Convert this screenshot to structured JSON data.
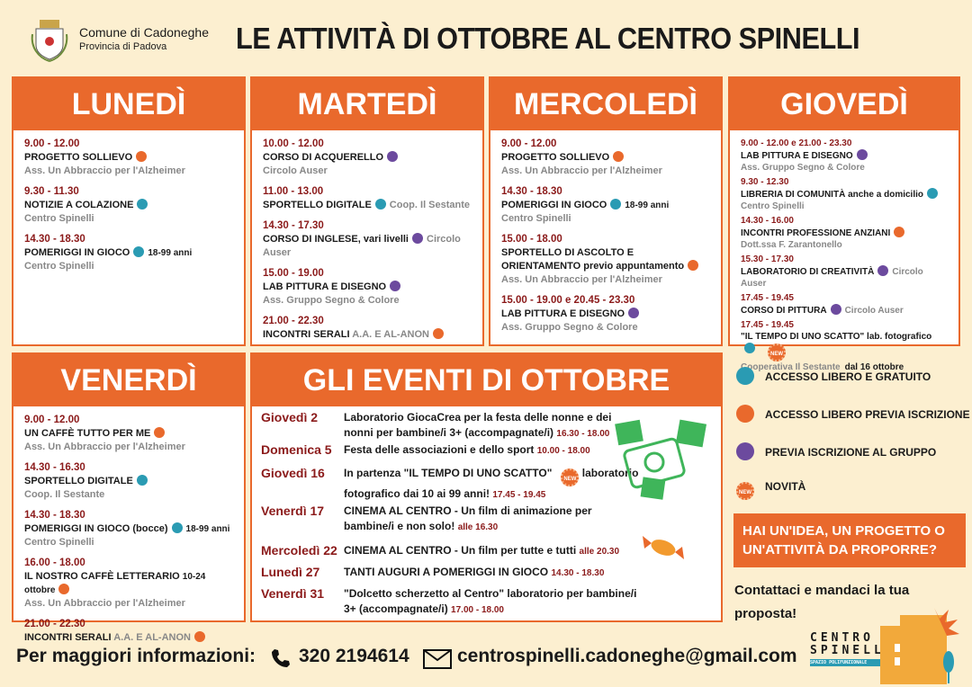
{
  "header": {
    "comune": "Comune di Cadoneghe",
    "provincia": "Provincia di Padova",
    "title": "LE ATTIVITÀ DI OTTOBRE AL CENTRO SPINELLI"
  },
  "colors": {
    "orange": "#e9692c",
    "teal": "#2a9bb3",
    "purple": "#6c4a9e",
    "time": "#8b1a1a"
  },
  "days": [
    {
      "name": "LUNEDÌ",
      "items": [
        {
          "time": "9.00 - 12.00",
          "line": [
            {
              "t": "PROGETTO SOLLIEVO",
              "c": "ln"
            },
            {
              "dot": "orange"
            }
          ],
          "org": "Ass. Un Abbraccio per l'Alzheimer"
        },
        {
          "time": "9.30 - 11.30",
          "line": [
            {
              "t": "NOTIZIE A COLAZIONE",
              "c": "ln"
            },
            {
              "dot": "teal"
            }
          ],
          "org": "Centro Spinelli"
        },
        {
          "time": "14.30 - 18.30",
          "line": [
            {
              "t": "POMERIGGI IN GIOCO",
              "c": "ln"
            },
            {
              "dot": "teal"
            },
            {
              "t": "18-99 anni",
              "c": "s"
            }
          ],
          "org": "Centro Spinelli"
        }
      ]
    },
    {
      "name": "MARTEDÌ",
      "items": [
        {
          "time": "10.00 - 12.00",
          "line": [
            {
              "t": "CORSO DI ACQUERELLO",
              "c": "ln"
            },
            {
              "dot": "purple"
            }
          ],
          "org": "Circolo Auser"
        },
        {
          "time": "11.00 - 13.00",
          "line": [
            {
              "t": "SPORTELLO DIGITALE",
              "c": "ln"
            },
            {
              "dot": "teal"
            },
            {
              "t": "Coop. Il Sestante",
              "c": "g"
            }
          ]
        },
        {
          "time": "14.30 - 17.30",
          "line": [
            {
              "t": "CORSO DI INGLESE, vari livelli",
              "c": "ln"
            },
            {
              "dot": "purple"
            },
            {
              "t": "Circolo Auser",
              "c": "g"
            }
          ]
        },
        {
          "time": "15.00 - 19.00",
          "line": [
            {
              "t": "LAB PITTURA E DISEGNO",
              "c": "ln"
            },
            {
              "dot": "purple"
            }
          ],
          "org": "Ass. Gruppo Segno & Colore"
        },
        {
          "time": "21.00 - 22.30",
          "line": [
            {
              "t": "INCONTRI SERALI ",
              "c": "ln"
            },
            {
              "t": "A.A. E AL-ANON",
              "c": "g"
            },
            {
              "dot": "orange"
            }
          ]
        }
      ]
    },
    {
      "name": "MERCOLEDÌ",
      "items": [
        {
          "time": "9.00 - 12.00",
          "line": [
            {
              "t": "PROGETTO SOLLIEVO",
              "c": "ln"
            },
            {
              "dot": "orange"
            }
          ],
          "org": "Ass. Un Abbraccio per l'Alzheimer"
        },
        {
          "time": "14.30 - 18.30",
          "line": [
            {
              "t": "POMERIGGI IN GIOCO",
              "c": "ln"
            },
            {
              "dot": "teal"
            },
            {
              "t": "18-99 anni",
              "c": "s"
            }
          ],
          "org": "Centro Spinelli"
        },
        {
          "time": "15.00 - 18.00",
          "line": [
            {
              "t": "SPORTELLO DI ASCOLTO E ORIENTAMENTO previo appuntamento",
              "c": "ln"
            },
            {
              "dot": "orange"
            }
          ],
          "org": "Ass. Un Abbraccio per l'Alzheimer"
        },
        {
          "time": "15.00 - 19.00 e  20.45 - 23.30",
          "line": [
            {
              "t": "LAB PITTURA E DISEGNO",
              "c": "ln"
            },
            {
              "dot": "purple"
            }
          ],
          "org": "Ass. Gruppo Segno & Colore"
        }
      ]
    },
    {
      "name": "GIOVEDÌ",
      "compact": true,
      "items": [
        {
          "time": "9.00 - 12.00  e  21.00 - 23.30",
          "line": [
            {
              "t": "LAB PITTURA E DISEGNO",
              "c": "ln"
            },
            {
              "dot": "purple"
            }
          ],
          "org": "Ass. Gruppo Segno & Colore"
        },
        {
          "time": "9.30 - 12.30",
          "line": [
            {
              "t": "LIBRERIA DI COMUNITÀ ",
              "c": "ln"
            },
            {
              "t": "anche a domicilio",
              "c": "s"
            },
            {
              "dot": "teal"
            }
          ],
          "org": "Centro Spinelli"
        },
        {
          "time": "14.30 - 16.00",
          "line": [
            {
              "t": "INCONTRI PROFESSIONE ANZIANI",
              "c": "ln"
            },
            {
              "dot": "orange"
            }
          ],
          "org": "Dott.ssa F. Zarantonello"
        },
        {
          "time": "15.30 - 17.30",
          "line": [
            {
              "t": "LABORATORIO DI CREATIVITÀ",
              "c": "ln"
            },
            {
              "dot": "purple"
            },
            {
              "t": "Circolo Auser",
              "c": "g"
            }
          ]
        },
        {
          "time": "17.45 - 19.45",
          "line": [
            {
              "t": "CORSO DI PITTURA",
              "c": "ln"
            },
            {
              "dot": "purple"
            },
            {
              "t": "Circolo Auser",
              "c": "g"
            }
          ]
        },
        {
          "time": "17.45 - 19.45",
          "line": [
            {
              "t": "\"IL TEMPO DI UNO SCATTO\" ",
              "c": "ln"
            },
            {
              "t": "lab. fotografico",
              "c": "s"
            },
            {
              "dot": "teal"
            },
            {
              "new": "NEW"
            }
          ],
          "org": "Cooperativa Il Sestante",
          "org_extra": "dal 16 ottobre"
        }
      ]
    },
    {
      "name": "VENERDÌ",
      "items": [
        {
          "time": "9.00 - 12.00",
          "line": [
            {
              "t": "UN CAFFÈ  TUTTO PER ME",
              "c": "ln"
            },
            {
              "dot": "orange"
            }
          ],
          "org": "Ass. Un Abbraccio per l'Alzheimer"
        },
        {
          "time": "14.30 - 16.30",
          "line": [
            {
              "t": "SPORTELLO DIGITALE",
              "c": "ln"
            },
            {
              "dot": "teal"
            }
          ],
          "org": "Coop. Il Sestante"
        },
        {
          "time": "14.30 - 18.30",
          "line": [
            {
              "t": "POMERIGGI IN GIOCO (bocce)",
              "c": "ln"
            },
            {
              "dot": "teal"
            },
            {
              "t": "18-99 anni",
              "c": "s"
            }
          ],
          "org": "Centro Spinelli"
        },
        {
          "time": "16.00 - 18.00",
          "line": [
            {
              "t": "IL NOSTRO CAFFÈ LETTERARIO ",
              "c": "ln"
            },
            {
              "t": "10-24 ottobre",
              "c": "s"
            },
            {
              "dot": "orange"
            }
          ],
          "org": "Ass. Un Abbraccio per l'Alzheimer"
        },
        {
          "time": "21.00 - 22.30",
          "line": [
            {
              "t": "INCONTRI SERALI ",
              "c": "ln"
            },
            {
              "t": "A.A. E AL-ANON",
              "c": "g"
            },
            {
              "dot": "orange"
            }
          ]
        }
      ]
    }
  ],
  "events": {
    "title": "GLI EVENTI DI OTTOBRE",
    "items": [
      {
        "day": "Giovedì 2",
        "line": [
          {
            "t": "Laboratorio GiocaCrea per la festa delle nonne e dei nonni per bambine/i 3+ (accompagnate/i) "
          },
          {
            "t": "16.30 - 18.00",
            "c": "t"
          }
        ]
      },
      {
        "day": "Domenica 5",
        "line": [
          {
            "t": "Festa delle associazioni e dello sport "
          },
          {
            "t": "10.00 - 18.00",
            "c": "t"
          }
        ]
      },
      {
        "day": "Giovedì 16",
        "line": [
          {
            "t": "In partenza \"IL TEMPO DI UNO SCATTO\""
          },
          {
            "new": "NEW"
          },
          {
            "t": " laboratorio fotografico dai 10 ai 99 anni! "
          },
          {
            "t": "17.45 - 19.45",
            "c": "t"
          }
        ]
      },
      {
        "day": "Venerdì 17",
        "line": [
          {
            "t": "CINEMA AL CENTRO - Un film di animazione per bambine/i e non solo! "
          },
          {
            "t": "alle 16.30",
            "c": "t"
          }
        ]
      },
      {
        "day": "Mercoledì 22",
        "line": [
          {
            "t": "CINEMA AL CENTRO - Un film per tutte e tutti  "
          },
          {
            "t": "alle 20.30",
            "c": "t"
          }
        ]
      },
      {
        "day": "Lunedì 27",
        "line": [
          {
            "t": "TANTI AUGURI A POMERIGGI IN GIOCO "
          },
          {
            "t": "14.30 - 18.30",
            "c": "t"
          }
        ]
      },
      {
        "day": "Venerdì 31",
        "line": [
          {
            "t": "\"Dolcetto scherzetto al Centro\" laboratorio per bambine/i 3+ (accompagnate/i) "
          },
          {
            "t": "17.00 - 18.00",
            "c": "t"
          }
        ]
      }
    ]
  },
  "legend": [
    {
      "dot": "teal",
      "label": "ACCESSO LIBERO E GRATUITO"
    },
    {
      "dot": "orange",
      "label": "ACCESSO LIBERO PREVIA ISCRIZIONE"
    },
    {
      "dot": "purple",
      "label": "PREVIA ISCRIZIONE AL GRUPPO"
    },
    {
      "new": "NEW",
      "label": "NOVITÀ"
    }
  ],
  "cta": {
    "idea": "HAI UN'IDEA, UN PROGETTO O UN'ATTIVITÀ DA PROPORRE?",
    "contact": "Contattaci e mandaci la tua proposta!"
  },
  "footer": {
    "label": "Per maggiori informazioni:",
    "phone": "320 2194614",
    "email": "centrospinelli.cadoneghe@gmail.com"
  },
  "logo": {
    "line1": "CENTRO",
    "line2": "SPINELLI",
    "tag": "SPAZIO POLIFUNZIONALE"
  }
}
